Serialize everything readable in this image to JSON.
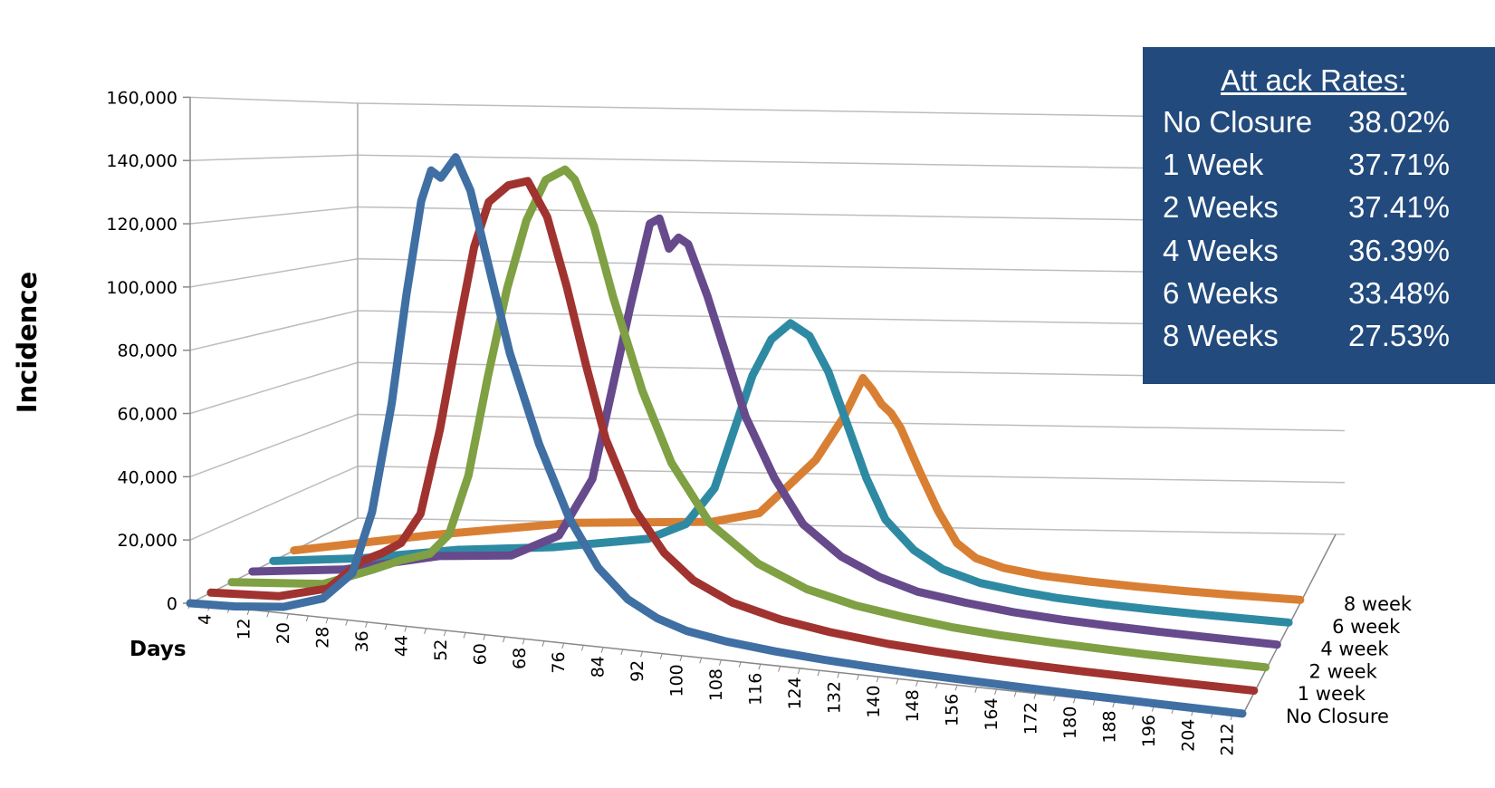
{
  "chart_data": {
    "type": "line",
    "title": "",
    "ylabel": "Incidence",
    "xlabel": "Days",
    "ylim": [
      0,
      160000
    ],
    "yticks": [
      0,
      20000,
      40000,
      60000,
      80000,
      100000,
      120000,
      140000,
      160000
    ],
    "ytick_labels": [
      "0",
      "20,000",
      "40,000",
      "60,000",
      "80,000",
      "100,000",
      "120,000",
      "140,000",
      "160,000"
    ],
    "x_tick_labels": [
      "4",
      "12",
      "20",
      "28",
      "36",
      "44",
      "52",
      "60",
      "68",
      "76",
      "84",
      "92",
      "100",
      "108",
      "116",
      "124",
      "132",
      "140",
      "148",
      "156",
      "164",
      "172",
      "180",
      "188",
      "196",
      "204",
      "212"
    ],
    "xlim": [
      1,
      215
    ],
    "series_labels": [
      "No Closure",
      "1 week",
      "2 week",
      "4 week",
      "6 week",
      "8 week"
    ],
    "grid": true,
    "series": [
      {
        "name": "No Closure",
        "color": "#3f6fa3",
        "x": [
          1,
          10,
          20,
          28,
          34,
          38,
          42,
          45,
          48,
          50,
          52,
          55,
          58,
          62,
          66,
          72,
          78,
          84,
          90,
          96,
          102,
          110,
          120,
          130,
          140,
          150,
          160,
          170,
          180,
          190,
          200,
          215
        ],
        "y": [
          0,
          500,
          2000,
          6000,
          15000,
          35000,
          70000,
          105000,
          135000,
          145000,
          143000,
          150000,
          140000,
          115000,
          90000,
          62000,
          40000,
          25000,
          16000,
          11000,
          8000,
          6000,
          4500,
          3500,
          2800,
          2200,
          1800,
          1500,
          1200,
          1000,
          800,
          600
        ]
      },
      {
        "name": "1 week",
        "color": "#a0332f",
        "x": [
          1,
          15,
          25,
          32,
          36,
          40,
          44,
          48,
          52,
          55,
          58,
          62,
          66,
          70,
          74,
          78,
          82,
          88,
          94,
          100,
          108,
          118,
          128,
          140,
          150,
          160,
          170,
          180,
          190,
          200,
          215
        ],
        "y": [
          0,
          1000,
          5000,
          15000,
          18000,
          22000,
          32000,
          60000,
          95000,
          120000,
          135000,
          141000,
          143000,
          132000,
          110000,
          85000,
          62000,
          40000,
          27000,
          19000,
          13000,
          9000,
          6500,
          4500,
          3500,
          2700,
          2100,
          1700,
          1400,
          1100,
          800
        ]
      },
      {
        "name": "2 week",
        "color": "#7fa043",
        "x": [
          1,
          20,
          30,
          36,
          42,
          46,
          50,
          54,
          58,
          62,
          66,
          70,
          72,
          76,
          80,
          86,
          92,
          100,
          110,
          120,
          130,
          140,
          150,
          160,
          170,
          180,
          190,
          200,
          215
        ],
        "y": [
          0,
          2000,
          8000,
          12000,
          15000,
          22000,
          42000,
          75000,
          105000,
          128000,
          142000,
          146000,
          143000,
          128000,
          105000,
          75000,
          52000,
          33000,
          21000,
          14000,
          10000,
          7500,
          5500,
          4200,
          3300,
          2600,
          2000,
          1600,
          1100
        ]
      },
      {
        "name": "4 week",
        "color": "#664a8c",
        "x": [
          1,
          20,
          40,
          55,
          65,
          72,
          76,
          80,
          84,
          86,
          88,
          90,
          92,
          96,
          100,
          104,
          110,
          116,
          124,
          132,
          140,
          150,
          160,
          170,
          180,
          190,
          200,
          215
        ],
        "y": [
          0,
          3000,
          10000,
          12000,
          20000,
          40000,
          70000,
          100000,
          128000,
          130000,
          120000,
          124000,
          122000,
          105000,
          85000,
          65000,
          45000,
          30000,
          20000,
          14000,
          10000,
          7500,
          5500,
          4200,
          3300,
          2600,
          2000,
          1200
        ]
      },
      {
        "name": "6 week",
        "color": "#2e8aa3",
        "x": [
          1,
          20,
          40,
          60,
          80,
          88,
          94,
          98,
          102,
          106,
          110,
          114,
          118,
          122,
          126,
          130,
          136,
          142,
          150,
          158,
          166,
          176,
          186,
          196,
          206,
          215
        ],
        "y": [
          0,
          3000,
          8000,
          11000,
          16000,
          22000,
          35000,
          55000,
          75000,
          88000,
          94000,
          90000,
          78000,
          60000,
          42000,
          28000,
          18000,
          12000,
          8000,
          6000,
          4500,
          3400,
          2600,
          2000,
          1500,
          1100
        ]
      },
      {
        "name": "8 week",
        "color": "#d97f33",
        "x": [
          1,
          30,
          60,
          90,
          100,
          106,
          112,
          118,
          122,
          124,
          126,
          128,
          130,
          134,
          138,
          142,
          146,
          152,
          160,
          170,
          180,
          190,
          200,
          215
        ],
        "y": [
          0,
          8000,
          15000,
          18000,
          22000,
          32000,
          42000,
          58000,
          72000,
          68000,
          63000,
          60000,
          55000,
          40000,
          26000,
          15000,
          10000,
          7000,
          5000,
          3800,
          2900,
          2200,
          1700,
          1200
        ]
      }
    ]
  },
  "attack_rates": {
    "title": "Att   ack Rates:",
    "rows": [
      {
        "label": "No Closure",
        "value": "38.02%"
      },
      {
        "label": "1 Week",
        "value": "37.71%"
      },
      {
        "label": "2 Weeks",
        "value": "37.41%"
      },
      {
        "label": "4 Weeks",
        "value": "36.39%"
      },
      {
        "label": "6 Weeks",
        "value": "33.48%"
      },
      {
        "label": "8 Weeks",
        "value": "27.53%"
      }
    ]
  }
}
